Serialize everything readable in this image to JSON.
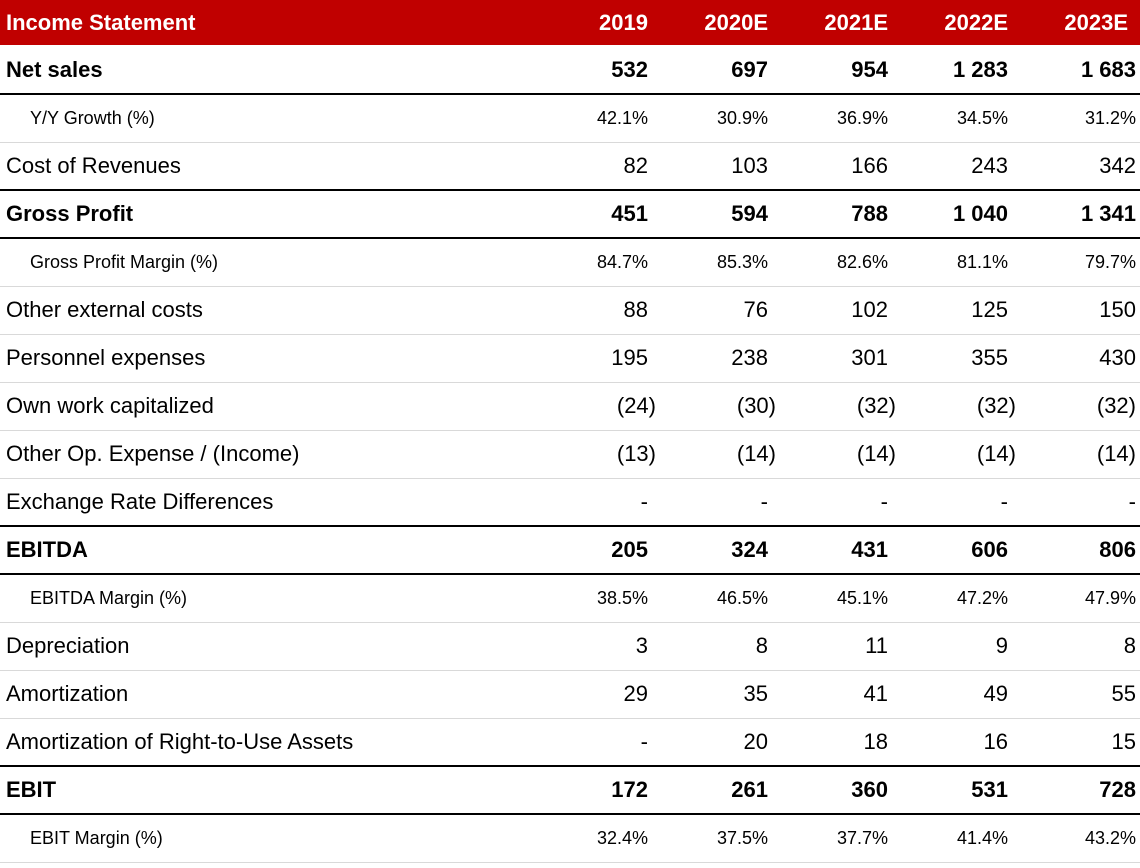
{
  "table": {
    "header": [
      "Income Statement",
      "2019",
      "2020E",
      "2021E",
      "2022E",
      "2023E"
    ],
    "rows": [
      {
        "label": "Net sales",
        "values": [
          "532",
          "697",
          "954",
          "1 283",
          "1 683"
        ],
        "style": "bold"
      },
      {
        "label": "Y/Y Growth (%)",
        "values": [
          "42.1%",
          "30.9%",
          "36.9%",
          "34.5%",
          "31.2%"
        ],
        "style": "sub"
      },
      {
        "label": "Cost of Revenues",
        "values": [
          "82",
          "103",
          "166",
          "243",
          "342"
        ],
        "style": "normal"
      },
      {
        "label": "Gross Profit",
        "values": [
          "451",
          "594",
          "788",
          "1 040",
          "1 341"
        ],
        "style": "bold"
      },
      {
        "label": "Gross Profit Margin (%)",
        "values": [
          "84.7%",
          "85.3%",
          "82.6%",
          "81.1%",
          "79.7%"
        ],
        "style": "sub"
      },
      {
        "label": "Other external costs",
        "values": [
          "88",
          "76",
          "102",
          "125",
          "150"
        ],
        "style": "normal"
      },
      {
        "label": "Personnel expenses",
        "values": [
          "195",
          "238",
          "301",
          "355",
          "430"
        ],
        "style": "normal"
      },
      {
        "label": "Own work capitalized",
        "values": [
          "(24)",
          "(30)",
          "(32)",
          "(32)",
          "(32)"
        ],
        "style": "normal"
      },
      {
        "label": "Other Op. Expense / (Income)",
        "values": [
          "(13)",
          "(14)",
          "(14)",
          "(14)",
          "(14)"
        ],
        "style": "normal"
      },
      {
        "label": "Exchange Rate Differences",
        "values": [
          "-",
          "-",
          "-",
          "-",
          "-"
        ],
        "style": "normal"
      },
      {
        "label": "EBITDA",
        "values": [
          "205",
          "324",
          "431",
          "606",
          "806"
        ],
        "style": "bold"
      },
      {
        "label": "EBITDA Margin (%)",
        "values": [
          "38.5%",
          "46.5%",
          "45.1%",
          "47.2%",
          "47.9%"
        ],
        "style": "sub"
      },
      {
        "label": "Depreciation",
        "values": [
          "3",
          "8",
          "11",
          "9",
          "8"
        ],
        "style": "normal"
      },
      {
        "label": "Amortization",
        "values": [
          "29",
          "35",
          "41",
          "49",
          "55"
        ],
        "style": "normal"
      },
      {
        "label": "Amortization of Right-to-Use Assets",
        "values": [
          "-",
          "20",
          "18",
          "16",
          "15"
        ],
        "style": "normal"
      },
      {
        "label": "EBIT",
        "values": [
          "172",
          "261",
          "360",
          "531",
          "728"
        ],
        "style": "bold"
      },
      {
        "label": "EBIT Margin (%)",
        "values": [
          "32.4%",
          "37.5%",
          "37.7%",
          "41.4%",
          "43.2%"
        ],
        "style": "sub"
      }
    ]
  },
  "colors": {
    "header_bg": "#c00000",
    "header_text": "#ffffff"
  }
}
